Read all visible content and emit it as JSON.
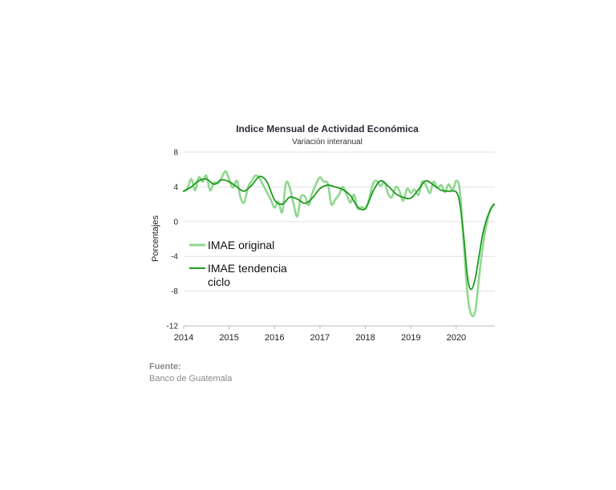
{
  "chart_data": {
    "type": "line",
    "title": "Indice Mensual de  Actividad Económica",
    "subtitle": "Variación interanual",
    "ylabel": "Porcentajes",
    "xlabel": "",
    "ylim": [
      -12,
      8
    ],
    "yticks": [
      8,
      4,
      0,
      -4,
      -8,
      -12
    ],
    "xlim": [
      2014,
      2020.85
    ],
    "xticks": [
      2014,
      2015,
      2016,
      2017,
      2018,
      2019,
      2020
    ],
    "legend_position": "left-center",
    "grid": "horizontal",
    "series": [
      {
        "name": "IMAE original",
        "color": "#8fd88f",
        "points": [
          [
            2014.0,
            3.5
          ],
          [
            2014.08,
            3.8
          ],
          [
            2014.17,
            4.9
          ],
          [
            2014.25,
            3.6
          ],
          [
            2014.33,
            5.1
          ],
          [
            2014.42,
            4.6
          ],
          [
            2014.5,
            5.3
          ],
          [
            2014.58,
            3.6
          ],
          [
            2014.67,
            4.5
          ],
          [
            2014.75,
            4.4
          ],
          [
            2014.83,
            5.0
          ],
          [
            2014.92,
            5.8
          ],
          [
            2015.0,
            4.9
          ],
          [
            2015.08,
            3.9
          ],
          [
            2015.17,
            4.7
          ],
          [
            2015.25,
            2.8
          ],
          [
            2015.33,
            2.2
          ],
          [
            2015.42,
            4.0
          ],
          [
            2015.5,
            4.7
          ],
          [
            2015.58,
            5.3
          ],
          [
            2015.67,
            5.0
          ],
          [
            2015.75,
            4.2
          ],
          [
            2015.83,
            3.4
          ],
          [
            2015.92,
            2.5
          ],
          [
            2016.0,
            1.6
          ],
          [
            2016.08,
            2.3
          ],
          [
            2016.17,
            1.1
          ],
          [
            2016.25,
            4.4
          ],
          [
            2016.33,
            4.0
          ],
          [
            2016.42,
            2.0
          ],
          [
            2016.5,
            0.6
          ],
          [
            2016.58,
            2.8
          ],
          [
            2016.67,
            2.9
          ],
          [
            2016.75,
            1.9
          ],
          [
            2016.83,
            3.3
          ],
          [
            2016.92,
            4.4
          ],
          [
            2017.0,
            5.1
          ],
          [
            2017.08,
            4.6
          ],
          [
            2017.17,
            4.4
          ],
          [
            2017.25,
            2.0
          ],
          [
            2017.33,
            2.5
          ],
          [
            2017.42,
            3.1
          ],
          [
            2017.5,
            4.0
          ],
          [
            2017.58,
            3.2
          ],
          [
            2017.67,
            2.2
          ],
          [
            2017.75,
            3.1
          ],
          [
            2017.83,
            1.5
          ],
          [
            2017.92,
            1.7
          ],
          [
            2018.0,
            1.5
          ],
          [
            2018.08,
            2.6
          ],
          [
            2018.17,
            4.4
          ],
          [
            2018.25,
            4.7
          ],
          [
            2018.33,
            4.1
          ],
          [
            2018.42,
            4.5
          ],
          [
            2018.5,
            3.2
          ],
          [
            2018.58,
            2.8
          ],
          [
            2018.67,
            4.0
          ],
          [
            2018.75,
            3.5
          ],
          [
            2018.83,
            2.4
          ],
          [
            2018.92,
            3.8
          ],
          [
            2019.0,
            3.3
          ],
          [
            2019.08,
            3.7
          ],
          [
            2019.17,
            3.1
          ],
          [
            2019.25,
            4.6
          ],
          [
            2019.33,
            4.2
          ],
          [
            2019.42,
            3.3
          ],
          [
            2019.5,
            4.6
          ],
          [
            2019.58,
            3.9
          ],
          [
            2019.67,
            4.2
          ],
          [
            2019.75,
            3.4
          ],
          [
            2019.83,
            4.3
          ],
          [
            2019.92,
            3.6
          ],
          [
            2020.0,
            4.7
          ],
          [
            2020.08,
            3.5
          ],
          [
            2020.17,
            -3.0
          ],
          [
            2020.25,
            -8.5
          ],
          [
            2020.33,
            -10.7
          ],
          [
            2020.42,
            -10.3
          ],
          [
            2020.5,
            -6.5
          ],
          [
            2020.58,
            -3.0
          ],
          [
            2020.67,
            -0.2
          ],
          [
            2020.75,
            1.4
          ],
          [
            2020.83,
            2.0
          ]
        ]
      },
      {
        "name": "IMAE tendencia ciclo",
        "color": "#1e9a1e",
        "points": [
          [
            2014.0,
            3.5
          ],
          [
            2014.17,
            4.0
          ],
          [
            2014.33,
            4.7
          ],
          [
            2014.5,
            4.9
          ],
          [
            2014.67,
            4.3
          ],
          [
            2014.83,
            4.8
          ],
          [
            2015.0,
            4.6
          ],
          [
            2015.17,
            4.0
          ],
          [
            2015.33,
            3.5
          ],
          [
            2015.5,
            4.2
          ],
          [
            2015.67,
            5.2
          ],
          [
            2015.83,
            4.6
          ],
          [
            2016.0,
            2.5
          ],
          [
            2016.17,
            2.0
          ],
          [
            2016.33,
            2.8
          ],
          [
            2016.5,
            2.6
          ],
          [
            2016.67,
            2.1
          ],
          [
            2016.83,
            2.7
          ],
          [
            2017.0,
            3.8
          ],
          [
            2017.17,
            4.2
          ],
          [
            2017.33,
            4.0
          ],
          [
            2017.5,
            3.7
          ],
          [
            2017.67,
            3.0
          ],
          [
            2017.83,
            1.7
          ],
          [
            2018.0,
            1.5
          ],
          [
            2018.17,
            3.5
          ],
          [
            2018.33,
            4.7
          ],
          [
            2018.5,
            4.1
          ],
          [
            2018.67,
            3.2
          ],
          [
            2018.83,
            2.8
          ],
          [
            2019.0,
            2.7
          ],
          [
            2019.17,
            3.7
          ],
          [
            2019.33,
            4.7
          ],
          [
            2019.5,
            4.2
          ],
          [
            2019.67,
            3.6
          ],
          [
            2019.83,
            3.5
          ],
          [
            2020.0,
            3.4
          ],
          [
            2020.08,
            2.0
          ],
          [
            2020.17,
            -2.0
          ],
          [
            2020.25,
            -6.5
          ],
          [
            2020.33,
            -7.8
          ],
          [
            2020.42,
            -6.5
          ],
          [
            2020.5,
            -4.0
          ],
          [
            2020.58,
            -1.5
          ],
          [
            2020.67,
            0.3
          ],
          [
            2020.75,
            1.3
          ],
          [
            2020.83,
            2.0
          ]
        ]
      }
    ]
  },
  "source": {
    "label": "Fuente:",
    "text": "Banco de Guatemala"
  }
}
